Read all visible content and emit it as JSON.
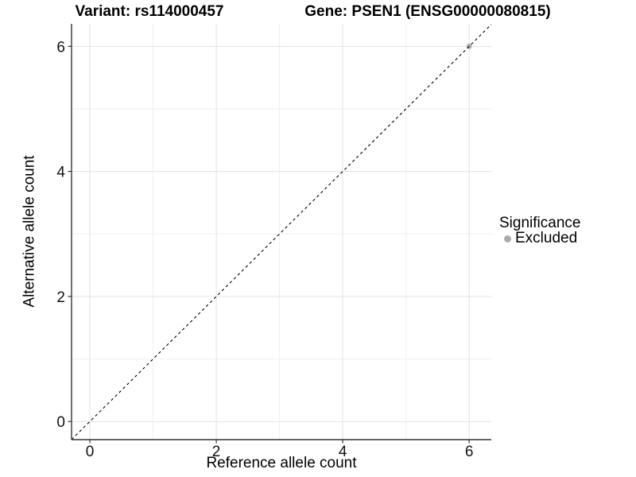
{
  "figure": {
    "title_left": "Variant: rs114000457",
    "title_right": "Gene: PSEN1 (ENSG00000080815)"
  },
  "axes": {
    "x_label": "Reference allele count",
    "y_label": "Alternative allele count"
  },
  "legend": {
    "title": "Significance",
    "items": [
      {
        "label": "Excluded",
        "color": "#ababab",
        "marker": "circle"
      }
    ]
  },
  "chart_data": {
    "type": "scatter",
    "title": "Variant: rs114000457 — Gene: PSEN1 (ENSG00000080815)",
    "xlabel": "Reference allele count",
    "ylabel": "Alternative allele count",
    "xlim": [
      -0.29,
      6.35
    ],
    "ylim": [
      -0.29,
      6.36
    ],
    "x_ticks": [
      0,
      2,
      4,
      6
    ],
    "y_ticks": [
      0,
      2,
      4,
      6
    ],
    "x_minor_ticks": [
      1,
      3,
      5
    ],
    "y_minor_ticks": [
      1,
      3,
      5
    ],
    "grid": "on",
    "legend_position": "right",
    "series": [
      {
        "name": "Excluded",
        "type": "scatter",
        "color": "#ababab",
        "points": [
          [
            6,
            6
          ]
        ]
      }
    ],
    "reference_line": {
      "kind": "identity",
      "slope": 1,
      "intercept": 0,
      "style": "dashed",
      "color": "#000000"
    }
  },
  "colors": {
    "background": "#ffffff",
    "grid_major": "#e3e3e3",
    "grid_minor": "#efefef",
    "axis_line": "#333333",
    "tick": "#333333",
    "tick_text": "#111111",
    "text": "#000000",
    "excluded_point": "#ababab"
  }
}
